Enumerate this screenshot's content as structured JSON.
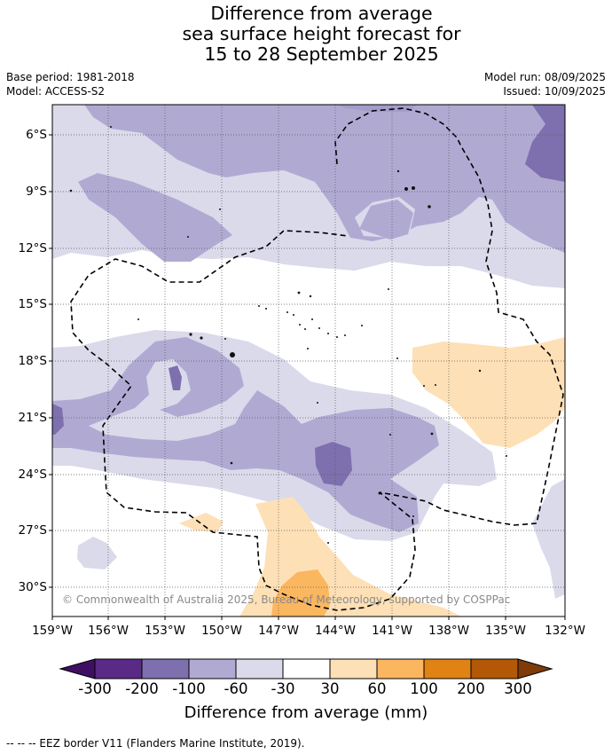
{
  "title": {
    "line1": "Difference from average",
    "line2": "sea surface height forecast for",
    "line3": "15 to 28 September 2025"
  },
  "meta": {
    "base_period": "Base period: 1981-2018",
    "model": "Model: ACCESS-S2",
    "model_run": "Model run: 08/09/2025",
    "issued": "Issued: 10/09/2025"
  },
  "map": {
    "lat_labels": [
      "6°S",
      "9°S",
      "12°S",
      "15°S",
      "18°S",
      "21°S",
      "24°S",
      "27°S",
      "30°S"
    ],
    "lon_labels": [
      "159°W",
      "156°W",
      "153°W",
      "150°W",
      "147°W",
      "144°W",
      "141°W",
      "138°W",
      "135°W",
      "132°W"
    ],
    "copyright": "© Commonwealth of Australia 2025, Bureau of Meteorology, supported by COSPPac"
  },
  "colorbar": {
    "ticks": [
      "-300",
      "-200",
      "-100",
      "-60",
      "-30",
      "30",
      "60",
      "100",
      "200",
      "300"
    ],
    "colors": [
      "#3f0f63",
      "#5a2a87",
      "#7e70ae",
      "#b0aad3",
      "#dadaeb",
      "#ffffff",
      "#fee0b6",
      "#fbb660",
      "#e08214",
      "#b35806",
      "#7f3b08"
    ],
    "label": "Difference from average (mm)"
  },
  "footnote": "--  --  -- EEZ border V11 (Flanders Marine Institute, 2019)."
}
